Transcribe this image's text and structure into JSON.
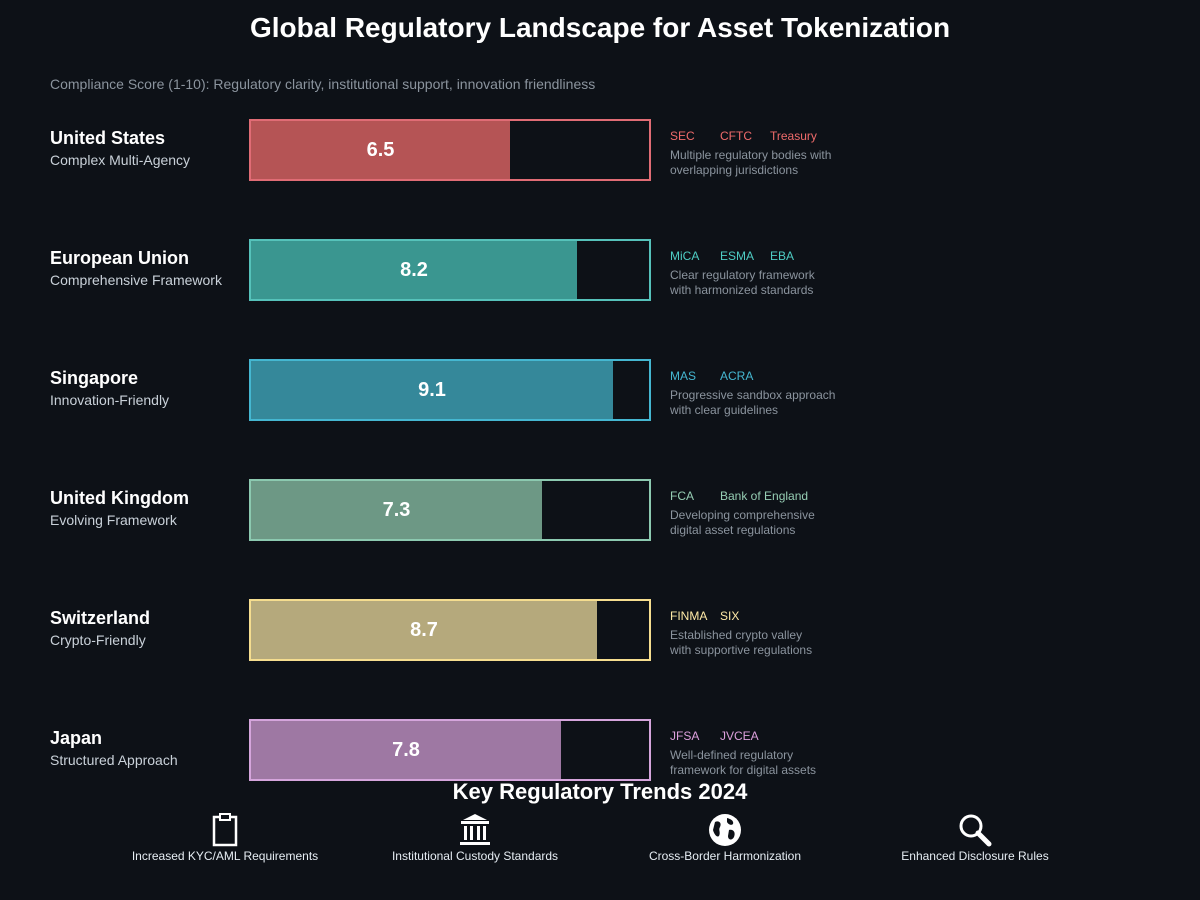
{
  "chart_data": {
    "type": "bar",
    "orientation": "horizontal",
    "title": "Global Regulatory Landscape for Asset Tokenization",
    "subtitle": "Compliance Score (1-10): Regulatory clarity, institutional support, innovation friendliness",
    "xlim": [
      0,
      10
    ],
    "categories": [
      "United States",
      "European Union",
      "Singapore",
      "United Kingdom",
      "Switzerland",
      "Japan"
    ],
    "values": [
      6.5,
      8.2,
      9.1,
      7.3,
      8.7,
      7.8
    ],
    "rows": [
      {
        "name": "United States",
        "subtitle": "Complex Multi-Agency",
        "score": 6.5,
        "score_label": "6.5",
        "agencies": [
          "SEC",
          "CFTC",
          "Treasury"
        ],
        "desc_lines": [
          "Multiple regulatory bodies with",
          "overlapping jurisdictions"
        ],
        "color": "#b55455",
        "border": "#e06c75",
        "accent": "#ef6b6b"
      },
      {
        "name": "European Union",
        "subtitle": "Comprehensive Framework",
        "score": 8.2,
        "score_label": "8.2",
        "agencies": [
          "MiCA",
          "ESMA",
          "EBA"
        ],
        "desc_lines": [
          "Clear regulatory framework",
          "with harmonized standards"
        ],
        "color": "#3a9690",
        "border": "#56c2ba",
        "accent": "#4ecdc4"
      },
      {
        "name": "Singapore",
        "subtitle": "Innovation-Friendly",
        "score": 9.1,
        "score_label": "9.1",
        "agencies": [
          "MAS",
          "ACRA"
        ],
        "desc_lines": [
          "Progressive sandbox approach",
          "with clear guidelines"
        ],
        "color": "#35889a",
        "border": "#45b7d1",
        "accent": "#45b7d1"
      },
      {
        "name": "United Kingdom",
        "subtitle": "Evolving Framework",
        "score": 7.3,
        "score_label": "7.3",
        "agencies": [
          "FCA",
          "Bank of England"
        ],
        "desc_lines": [
          "Developing comprehensive",
          "digital asset regulations"
        ],
        "color": "#6d9885",
        "border": "#8cc9b0",
        "accent": "#96ceb4"
      },
      {
        "name": "Switzerland",
        "subtitle": "Crypto-Friendly",
        "score": 8.7,
        "score_label": "8.7",
        "agencies": [
          "FINMA",
          "SIX"
        ],
        "desc_lines": [
          "Established crypto valley",
          "with supportive regulations"
        ],
        "color": "#b5a97c",
        "border": "#f5dd8f",
        "accent": "#ffeaa7"
      },
      {
        "name": "Japan",
        "subtitle": "Structured Approach",
        "score": 7.8,
        "score_label": "7.8",
        "agencies": [
          "JFSA",
          "JVCEA"
        ],
        "desc_lines": [
          "Well-defined regulatory",
          "framework for digital assets"
        ],
        "color": "#9e78a3",
        "border": "#d5a5dc",
        "accent": "#dda0dd"
      }
    ]
  },
  "trends": {
    "title": "Key Regulatory Trends 2024",
    "items": [
      {
        "label": "Increased KYC/AML Requirements",
        "icon": "clipboard-icon"
      },
      {
        "label": "Institutional Custody Standards",
        "icon": "bank-icon"
      },
      {
        "label": "Cross-Border Harmonization",
        "icon": "globe-icon"
      },
      {
        "label": "Enhanced Disclosure Rules",
        "icon": "magnifier-icon"
      }
    ]
  }
}
